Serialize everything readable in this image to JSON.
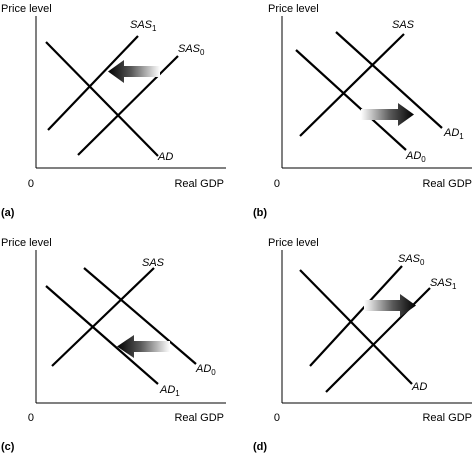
{
  "axes": {
    "y_title": "Price level",
    "x_title": "Real GDP",
    "origin": "0"
  },
  "panels": [
    {
      "id": "a",
      "label": "(a)",
      "curves": [
        {
          "name": "AD",
          "sub": ""
        },
        {
          "name": "SAS",
          "sub": "1"
        },
        {
          "name": "SAS",
          "sub": "0"
        }
      ],
      "arrow": "left"
    },
    {
      "id": "b",
      "label": "(b)",
      "curves": [
        {
          "name": "SAS",
          "sub": ""
        },
        {
          "name": "AD",
          "sub": "0"
        },
        {
          "name": "AD",
          "sub": "1"
        }
      ],
      "arrow": "right"
    },
    {
      "id": "c",
      "label": "(c)",
      "curves": [
        {
          "name": "SAS",
          "sub": ""
        },
        {
          "name": "AD",
          "sub": "1"
        },
        {
          "name": "AD",
          "sub": "0"
        }
      ],
      "arrow": "left"
    },
    {
      "id": "d",
      "label": "(d)",
      "curves": [
        {
          "name": "AD",
          "sub": ""
        },
        {
          "name": "SAS",
          "sub": "0"
        },
        {
          "name": "SAS",
          "sub": "1"
        }
      ],
      "arrow": "right"
    }
  ]
}
